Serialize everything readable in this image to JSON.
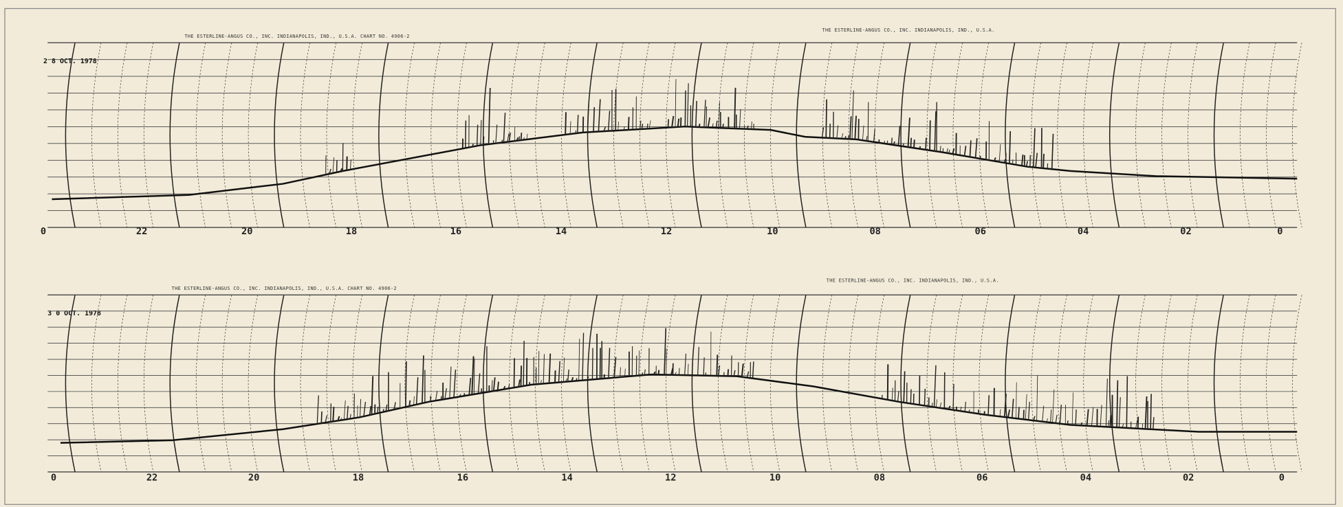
{
  "panels": [
    {
      "header_left": "THE ESTERLINE-ANGUS CO., INC. INDIANAPOLIS, IND., U.S.A. CHART NO. 4906-2",
      "header_right": "THE ESTERLINE-ANGUS CO., INC. INDIANAPOLIS, IND., U.S.A.",
      "date": "2 8 OCT. 1978",
      "hour_labels": [
        "0",
        "22",
        "20",
        "18",
        "16",
        "14",
        "12",
        "10",
        "08",
        "06",
        "04",
        "02",
        "0"
      ]
    },
    {
      "header_left": "THE ESTERLINE-ANGUS CO., INC. INDIANAPOLIS, IND., U.S.A. CHART NO. 4906-2",
      "header_right": "THE ESTERLINE-ANGUS CO., INC. INDIANAPOLIS, IND., U.S.A.",
      "date": "3 0 OCT. 1978",
      "hour_labels": [
        "0",
        "22",
        "20",
        "18",
        "16",
        "14",
        "12",
        "10",
        "08",
        "06",
        "04",
        "02",
        "0"
      ]
    }
  ]
}
